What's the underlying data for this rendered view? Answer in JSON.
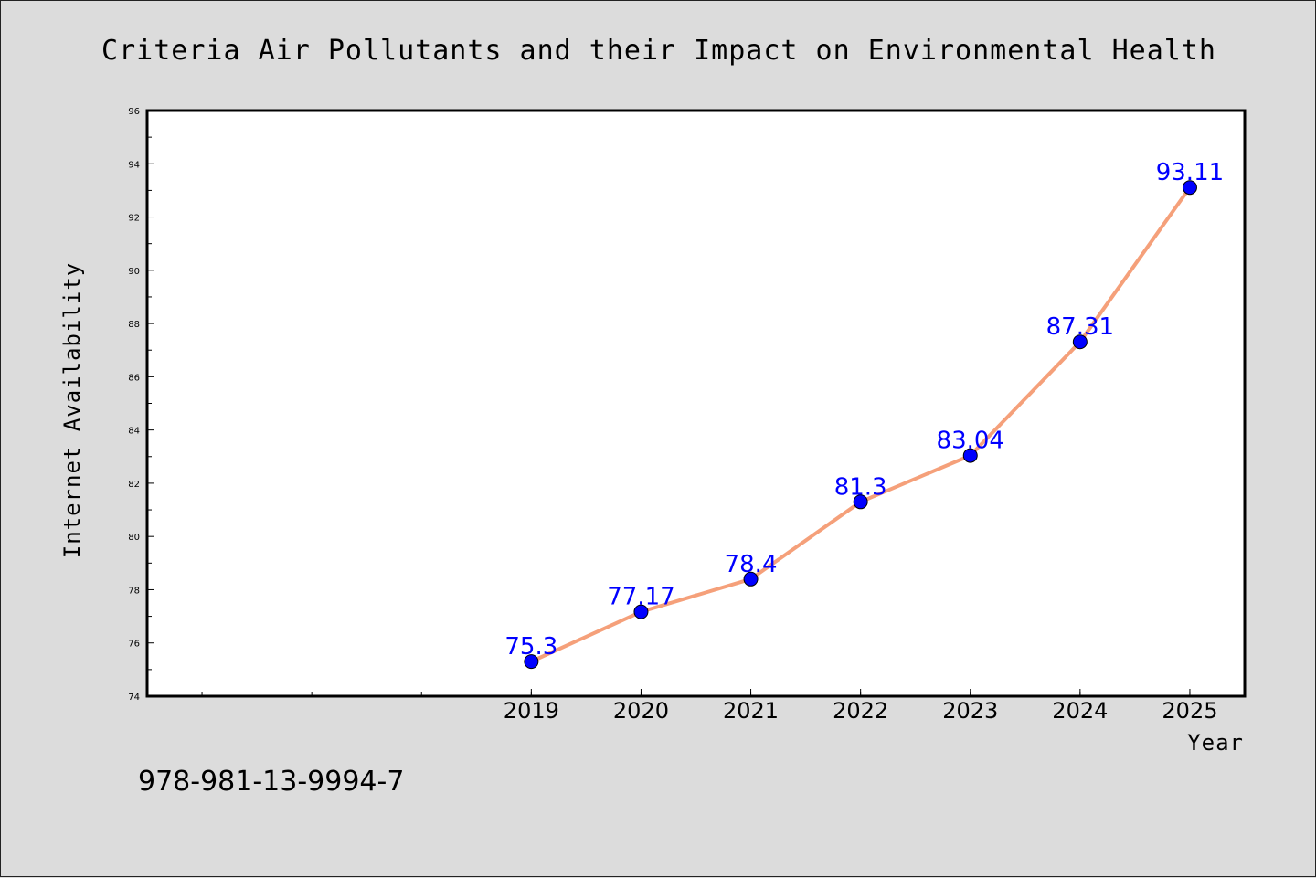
{
  "chart_data": {
    "type": "line",
    "title": "Criteria Air Pollutants and their Impact on Environmental Health",
    "xlabel": "Year",
    "ylabel": "Internet Availability",
    "categories": [
      "2019",
      "2020",
      "2021",
      "2022",
      "2023",
      "2024",
      "2025"
    ],
    "x_range": [
      2015.5,
      2025.5
    ],
    "series": [
      {
        "values": [
          75.3,
          77.17,
          78.4,
          81.3,
          83.04,
          87.31,
          93.11
        ],
        "labels": [
          "75.3",
          "77.17",
          "78.4",
          "81.3",
          "83.04",
          "87.31",
          "93.11"
        ],
        "line_color": "#f5a07a",
        "marker_color": "#0000ff"
      }
    ],
    "ylim": [
      74,
      96
    ],
    "yticks": [
      "74",
      "76",
      "78",
      "80",
      "82",
      "84",
      "86",
      "88",
      "90",
      "92",
      "94",
      "96"
    ],
    "grid": false,
    "legend": "none",
    "annotation": "978-981-13-9994-7"
  }
}
